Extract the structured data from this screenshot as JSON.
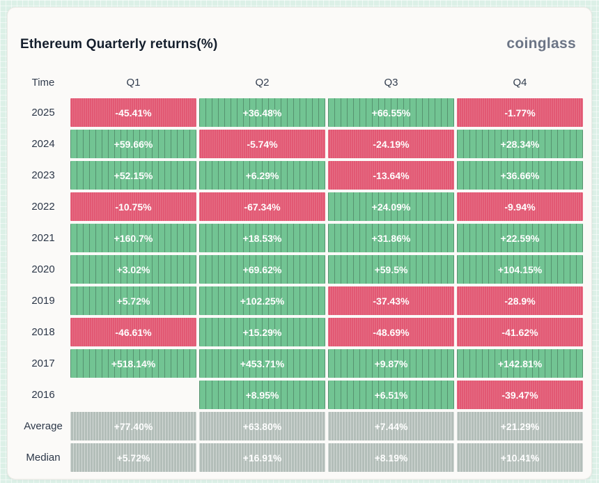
{
  "card": {
    "title": "Ethereum Quarterly returns(%)",
    "brand": "coinglass"
  },
  "colors": {
    "positive": "#72c493",
    "negative": "#e25873",
    "neutral": "#b3beb9",
    "card_background": "#fbfaf8",
    "page_background": "#dcf0e7"
  },
  "table": {
    "columns": [
      "Time",
      "Q1",
      "Q2",
      "Q3",
      "Q4"
    ],
    "rows": [
      {
        "label": "2025",
        "cells": [
          {
            "value": "-45.41%",
            "tone": "neg"
          },
          {
            "value": "+36.48%",
            "tone": "pos"
          },
          {
            "value": "+66.55%",
            "tone": "pos"
          },
          {
            "value": "-1.77%",
            "tone": "neg"
          }
        ]
      },
      {
        "label": "2024",
        "cells": [
          {
            "value": "+59.66%",
            "tone": "pos"
          },
          {
            "value": "-5.74%",
            "tone": "neg"
          },
          {
            "value": "-24.19%",
            "tone": "neg"
          },
          {
            "value": "+28.34%",
            "tone": "pos"
          }
        ]
      },
      {
        "label": "2023",
        "cells": [
          {
            "value": "+52.15%",
            "tone": "pos"
          },
          {
            "value": "+6.29%",
            "tone": "pos"
          },
          {
            "value": "-13.64%",
            "tone": "neg"
          },
          {
            "value": "+36.66%",
            "tone": "pos"
          }
        ]
      },
      {
        "label": "2022",
        "cells": [
          {
            "value": "-10.75%",
            "tone": "neg"
          },
          {
            "value": "-67.34%",
            "tone": "neg"
          },
          {
            "value": "+24.09%",
            "tone": "pos"
          },
          {
            "value": "-9.94%",
            "tone": "neg"
          }
        ]
      },
      {
        "label": "2021",
        "cells": [
          {
            "value": "+160.7%",
            "tone": "pos"
          },
          {
            "value": "+18.53%",
            "tone": "pos"
          },
          {
            "value": "+31.86%",
            "tone": "pos"
          },
          {
            "value": "+22.59%",
            "tone": "pos"
          }
        ]
      },
      {
        "label": "2020",
        "cells": [
          {
            "value": "+3.02%",
            "tone": "pos"
          },
          {
            "value": "+69.62%",
            "tone": "pos"
          },
          {
            "value": "+59.5%",
            "tone": "pos"
          },
          {
            "value": "+104.15%",
            "tone": "pos"
          }
        ]
      },
      {
        "label": "2019",
        "cells": [
          {
            "value": "+5.72%",
            "tone": "pos"
          },
          {
            "value": "+102.25%",
            "tone": "pos"
          },
          {
            "value": "-37.43%",
            "tone": "neg"
          },
          {
            "value": "-28.9%",
            "tone": "neg"
          }
        ]
      },
      {
        "label": "2018",
        "cells": [
          {
            "value": "-46.61%",
            "tone": "neg"
          },
          {
            "value": "+15.29%",
            "tone": "pos"
          },
          {
            "value": "-48.69%",
            "tone": "neg"
          },
          {
            "value": "-41.62%",
            "tone": "neg"
          }
        ]
      },
      {
        "label": "2017",
        "cells": [
          {
            "value": "+518.14%",
            "tone": "pos"
          },
          {
            "value": "+453.71%",
            "tone": "pos"
          },
          {
            "value": "+9.87%",
            "tone": "pos"
          },
          {
            "value": "+142.81%",
            "tone": "pos"
          }
        ]
      },
      {
        "label": "2016",
        "cells": [
          {
            "value": null,
            "tone": "empty"
          },
          {
            "value": "+8.95%",
            "tone": "pos"
          },
          {
            "value": "+6.51%",
            "tone": "pos"
          },
          {
            "value": "-39.47%",
            "tone": "neg"
          }
        ]
      },
      {
        "label": "Average",
        "cells": [
          {
            "value": "+77.40%",
            "tone": "avg"
          },
          {
            "value": "+63.80%",
            "tone": "avg"
          },
          {
            "value": "+7.44%",
            "tone": "avg"
          },
          {
            "value": "+21.29%",
            "tone": "avg"
          }
        ]
      },
      {
        "label": "Median",
        "cells": [
          {
            "value": "+5.72%",
            "tone": "avg"
          },
          {
            "value": "+16.91%",
            "tone": "avg"
          },
          {
            "value": "+8.19%",
            "tone": "avg"
          },
          {
            "value": "+10.41%",
            "tone": "avg"
          }
        ]
      }
    ]
  },
  "chart_data": {
    "type": "table",
    "title": "Ethereum Quarterly returns(%)",
    "columns": [
      "Q1",
      "Q2",
      "Q3",
      "Q4"
    ],
    "row_labels": [
      "2025",
      "2024",
      "2023",
      "2022",
      "2021",
      "2020",
      "2019",
      "2018",
      "2017",
      "2016",
      "Average",
      "Median"
    ],
    "values_pct": [
      [
        -45.41,
        36.48,
        66.55,
        -1.77
      ],
      [
        59.66,
        -5.74,
        -24.19,
        28.34
      ],
      [
        52.15,
        6.29,
        -13.64,
        36.66
      ],
      [
        -10.75,
        -67.34,
        24.09,
        -9.94
      ],
      [
        160.7,
        18.53,
        31.86,
        22.59
      ],
      [
        3.02,
        69.62,
        59.5,
        104.15
      ],
      [
        5.72,
        102.25,
        -37.43,
        -28.9
      ],
      [
        -46.61,
        15.29,
        -48.69,
        -41.62
      ],
      [
        518.14,
        453.71,
        9.87,
        142.81
      ],
      [
        null,
        8.95,
        6.51,
        -39.47
      ],
      [
        77.4,
        63.8,
        7.44,
        21.29
      ],
      [
        5.72,
        16.91,
        8.19,
        10.41
      ]
    ],
    "legend": "green = positive return, red = negative return, gray = aggregate rows",
    "grid": false
  }
}
